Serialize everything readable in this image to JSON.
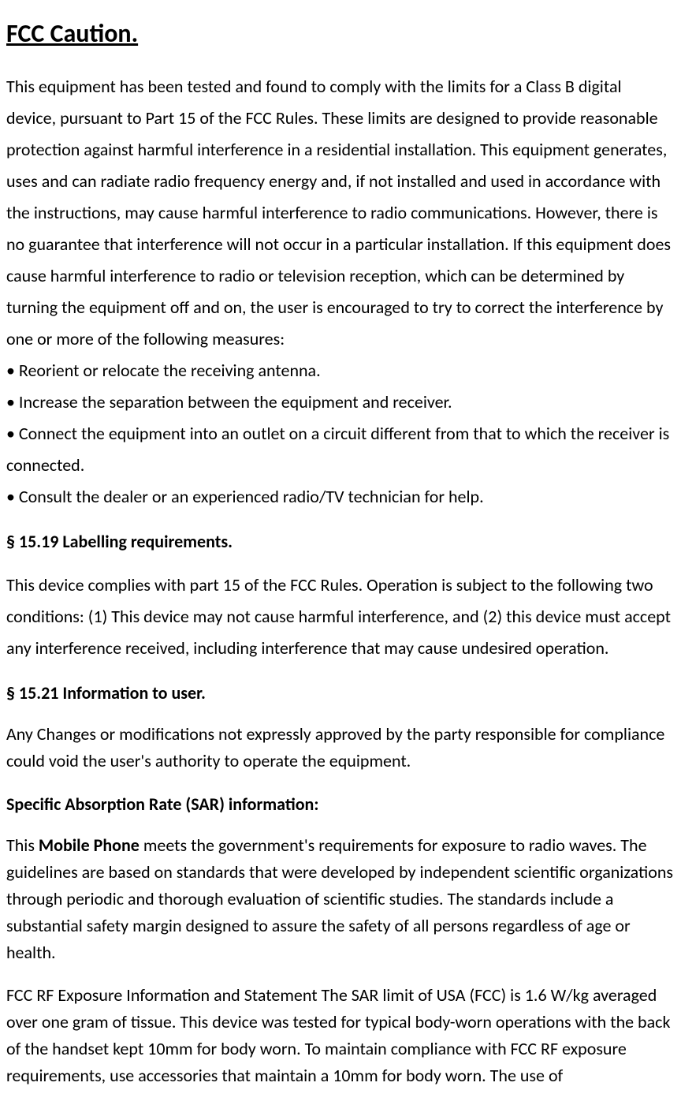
{
  "doc": {
    "title": "FCC Caution.",
    "intro": "This equipment has been tested and found to comply with the limits for a Class B digital device, pursuant to Part 15 of the FCC Rules. These limits are designed to provide reasonable protection against harmful interference in a residential installation. This equipment generates, uses and can radiate radio frequency energy and, if not installed and used in accordance with the instructions, may cause harmful interference to radio communications. However, there is no guarantee that interference will not occur in a particular installation. If this equipment does cause harmful interference to radio or television reception, which can be determined by turning the equipment off and on, the user is encouraged to try to correct the interference by one or more of the following measures:",
    "bullets": [
      "• Reorient or relocate the receiving antenna.",
      "• Increase the separation between the equipment and receiver.",
      "• Connect the equipment into an outlet on a circuit different from that to which the receiver is connected.",
      "• Consult the dealer or an experienced radio/TV technician for help."
    ],
    "sec1_head": "§ 15.19 Labelling requirements.",
    "sec1_body": "This device complies with part 15 of the FCC Rules. Operation is subject to the following two conditions: (1) This device may not cause harmful interference, and (2) this device must accept any interference received, including interference that may cause undesired operation.",
    "sec2_head": "§ 15.21 Information to user.",
    "sec2_body": "Any Changes or modifications not expressly approved by the party responsible for compliance could void the user's authority to operate the equipment.",
    "sar_head": "Specific Absorption Rate (SAR) information:",
    "sar_body_pre": "This ",
    "sar_body_bold": "Mobile Phone",
    "sar_body_post": " meets the government's requirements for exposure to radio waves. The guidelines are based on standards that were developed by independent scientific organizations through periodic and thorough evaluation of scientific studies. The standards include a substantial safety margin designed to assure the safety of all persons regardless of age or health.",
    "rf_body": "FCC RF Exposure Information and Statement The SAR limit of USA (FCC) is 1.6 W/kg averaged over one gram of tissue. This device was tested for typical body-worn operations with the back of the handset kept 10mm for body worn. To maintain compliance with FCC RF exposure requirements, use accessories that maintain a 10mm for body worn. The use of"
  }
}
